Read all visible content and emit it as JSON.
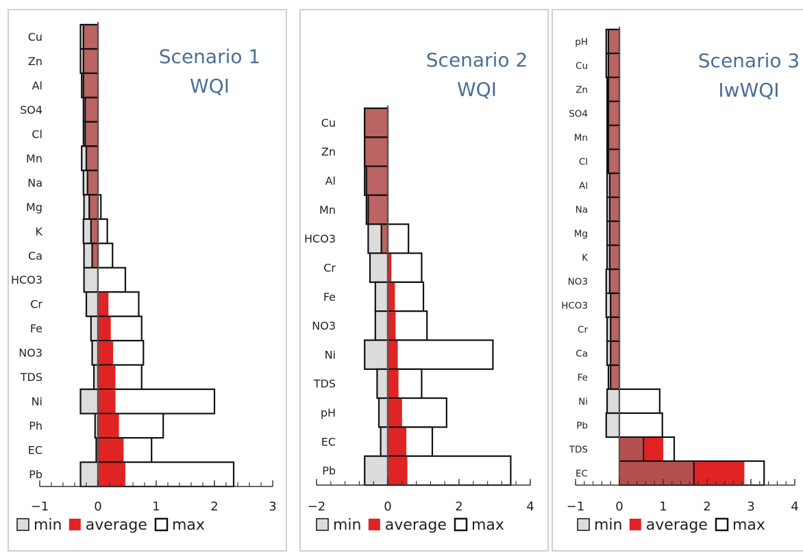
{
  "colors": {
    "title": "#4a6f98",
    "min_fill": "#dcdcdc",
    "avg_fill": "#e02424",
    "max_fill": "#ffffff",
    "overlap_fill": "#b44f4f",
    "stroke": "#111111",
    "avg_line": "#555555"
  },
  "legend": {
    "min": "min",
    "average": "average",
    "max": "max"
  },
  "chart_data": [
    {
      "type": "bar",
      "orientation": "horizontal",
      "title": [
        "Scenario 1",
        "WQI"
      ],
      "categories": [
        "Cu",
        "Zn",
        "Al",
        "SO4",
        "Cl",
        "Mn",
        "Na",
        "Mg",
        "K",
        "Ca",
        "HCO3",
        "Cr",
        "Fe",
        "NO3",
        "TDS",
        "Ni",
        "Ph",
        "EC",
        "Pb"
      ],
      "series": [
        {
          "name": "min",
          "values": [
            -0.3,
            -0.3,
            -0.28,
            -0.25,
            -0.25,
            -0.28,
            -0.25,
            -0.24,
            -0.25,
            -0.24,
            -0.24,
            -0.2,
            -0.12,
            -0.1,
            -0.07,
            -0.3,
            -0.05,
            -0.03,
            -0.3
          ]
        },
        {
          "name": "average",
          "values": [
            -0.25,
            -0.25,
            -0.25,
            -0.22,
            -0.22,
            -0.2,
            -0.18,
            -0.15,
            -0.12,
            -0.1,
            0.0,
            0.18,
            0.22,
            0.26,
            0.3,
            0.3,
            0.36,
            0.44,
            0.47
          ]
        },
        {
          "name": "max",
          "values": [
            0.0,
            0.0,
            0.0,
            0.0,
            0.0,
            0.0,
            0.0,
            0.05,
            0.16,
            0.25,
            0.47,
            0.7,
            0.75,
            0.78,
            0.75,
            2.0,
            1.12,
            0.92,
            2.33
          ]
        }
      ],
      "xlim": [
        -1,
        3
      ],
      "xticks": [
        -1,
        0,
        1,
        2,
        3
      ],
      "legend_position": "bottom"
    },
    {
      "type": "bar",
      "orientation": "horizontal",
      "title": [
        "Scenario 2",
        "WQI"
      ],
      "categories": [
        "Cu",
        "Zn",
        "Al",
        "Mn",
        "HCO3",
        "Cr",
        "Fe",
        "NO3",
        "Ni",
        "TDS",
        "pH",
        "EC",
        "Pb"
      ],
      "series": [
        {
          "name": "min",
          "values": [
            -0.65,
            -0.65,
            -0.65,
            -0.6,
            -0.55,
            -0.5,
            -0.35,
            -0.35,
            -0.65,
            -0.3,
            -0.25,
            -0.2,
            -0.65
          ]
        },
        {
          "name": "average",
          "values": [
            -0.65,
            -0.65,
            -0.6,
            -0.55,
            -0.18,
            0.1,
            0.2,
            0.22,
            0.28,
            0.3,
            0.4,
            0.52,
            0.55
          ]
        },
        {
          "name": "max",
          "values": [
            0.0,
            0.0,
            0.0,
            0.0,
            0.58,
            0.95,
            1.0,
            1.1,
            2.95,
            0.95,
            1.65,
            1.25,
            3.45
          ]
        }
      ],
      "xlim": [
        -2,
        4
      ],
      "xticks": [
        -2,
        0,
        2,
        4
      ],
      "legend_position": "bottom"
    },
    {
      "type": "bar",
      "orientation": "horizontal",
      "title": [
        "Scenario 3",
        "IwWQI"
      ],
      "categories": [
        "pH",
        "Cu",
        "Zn",
        "SO4",
        "Mn",
        "Cl",
        "Al",
        "Na",
        "Mg",
        "K",
        "NO3",
        "HCO3",
        "Cr",
        "Ca",
        "Fe",
        "Ni",
        "Pb",
        "TDS",
        "EC"
      ],
      "series": [
        {
          "name": "min",
          "values": [
            -0.3,
            -0.3,
            -0.28,
            -0.28,
            -0.28,
            -0.28,
            -0.28,
            -0.28,
            -0.28,
            -0.28,
            -0.3,
            -0.3,
            -0.28,
            -0.28,
            -0.25,
            -0.28,
            -0.3,
            0.0,
            0.0
          ]
        },
        {
          "name": "average",
          "values": [
            -0.25,
            -0.25,
            -0.25,
            -0.25,
            -0.25,
            -0.25,
            -0.22,
            -0.22,
            -0.22,
            -0.22,
            -0.22,
            -0.2,
            -0.2,
            -0.2,
            -0.2,
            0.0,
            0.0,
            1.0,
            2.85
          ]
        },
        {
          "name": "max",
          "values": [
            0.0,
            0.0,
            0.0,
            0.0,
            0.0,
            0.0,
            0.0,
            0.0,
            0.0,
            0.0,
            0.0,
            0.0,
            0.0,
            0.0,
            0.0,
            0.92,
            0.98,
            1.25,
            3.3
          ]
        },
        {
          "name": "overlap",
          "values": [
            0,
            0,
            0,
            0,
            0,
            0,
            0,
            0,
            0,
            0,
            0,
            0,
            0,
            0,
            0,
            0,
            0,
            0.55,
            1.7
          ]
        }
      ],
      "xlim": [
        -1,
        4
      ],
      "xticks": [
        -1,
        0,
        1,
        2,
        3,
        4
      ],
      "legend_position": "bottom"
    }
  ]
}
